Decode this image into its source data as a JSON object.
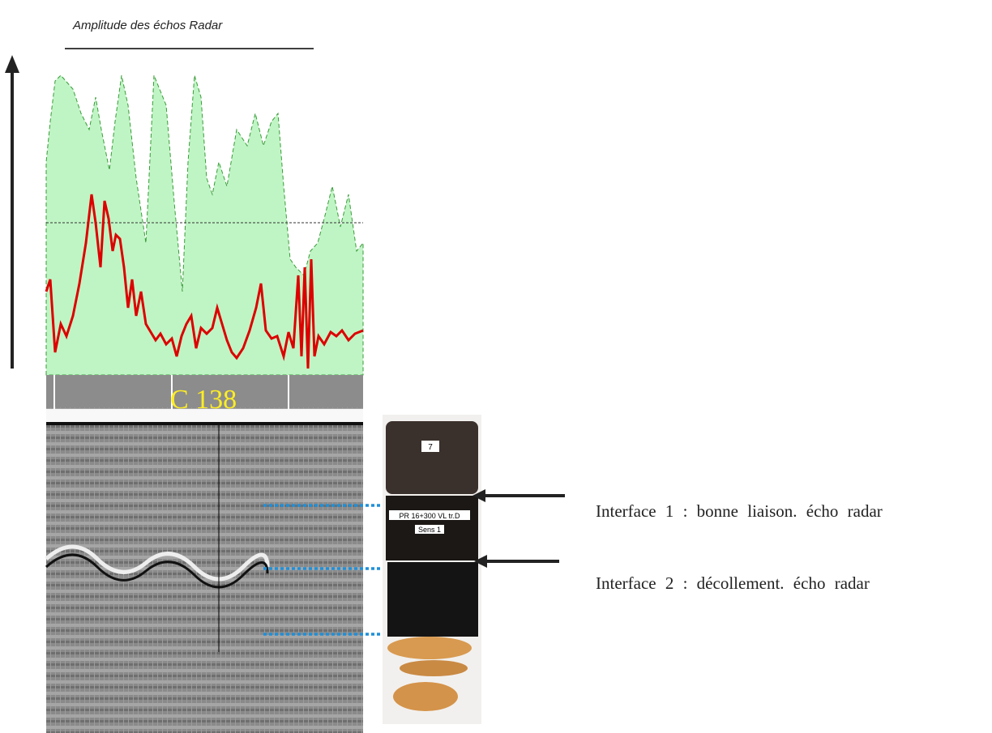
{
  "figure": {
    "amplitude_title": "Amplitude des échos Radar",
    "radargram_label": "C 138",
    "core": {
      "number": "7",
      "tag": "PR 16+300 VL tr.D",
      "direction": "Sens 1"
    },
    "annotations": [
      "Interface 1 : bonne liaison. écho radar",
      "Interface 2 : décollement. écho radar"
    ]
  }
}
